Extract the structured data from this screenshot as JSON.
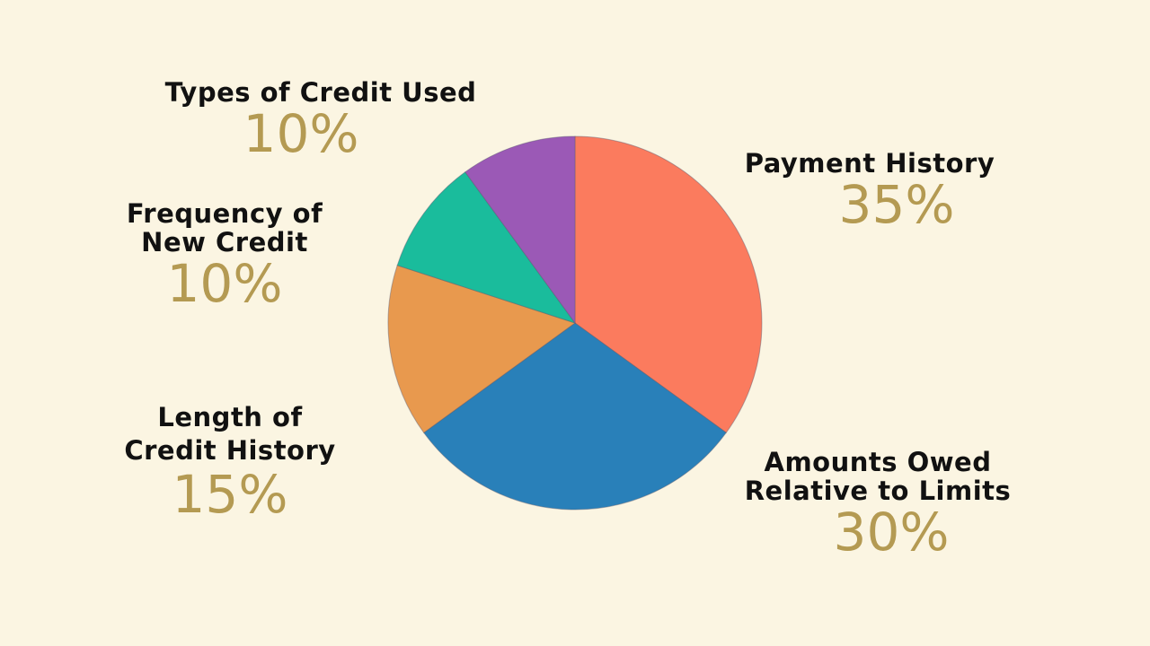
{
  "chart_data": {
    "type": "pie",
    "start": "top, clockwise",
    "slices": [
      {
        "label": "Payment History",
        "value": 35,
        "display": "35%",
        "color": "#fb7b5e"
      },
      {
        "label": "Amounts Owed Relative to Limits",
        "line1": "Amounts Owed",
        "line2": "Relative to Limits",
        "value": 30,
        "display": "30%",
        "color": "#2980b9"
      },
      {
        "label": "Length of Credit History",
        "line1": "Length of",
        "line2": "Credit History",
        "value": 15,
        "display": "15%",
        "color": "#e8994e"
      },
      {
        "label": "Frequency of New Credit",
        "line1": "Frequency of",
        "line2": "New Credit",
        "value": 10,
        "display": "10%",
        "color": "#1abc9c"
      },
      {
        "label": "Types of Credit Used",
        "value": 10,
        "display": "10%",
        "color": "#9b59b6"
      }
    ]
  }
}
